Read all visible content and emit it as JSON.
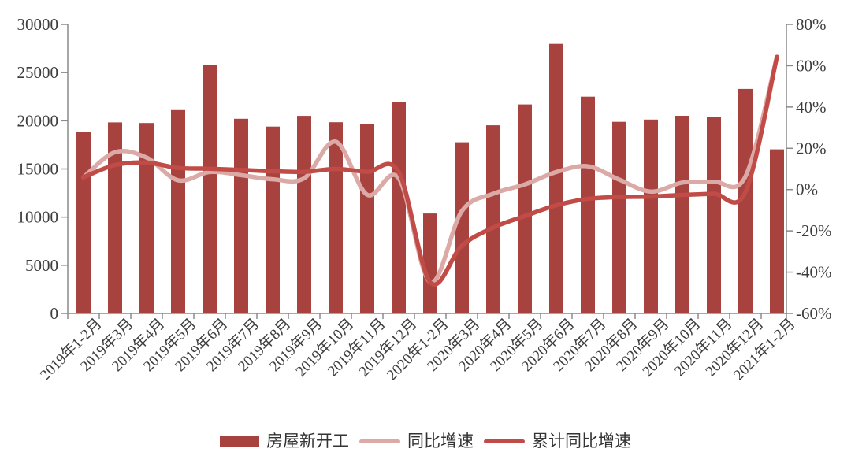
{
  "chart": {
    "background": "#ffffff",
    "text_color": "#3d3d3d",
    "axis_color": "#8a8a8a"
  },
  "chart_data": {
    "type": "bar",
    "title": "",
    "xlabel": "",
    "ylabel_left": "",
    "ylabel_right": "",
    "grid": false,
    "legend_position": "bottom",
    "categories": [
      "2019年1-2月",
      "2019年3月",
      "2019年4月",
      "2019年5月",
      "2019年6月",
      "2019年7月",
      "2019年8月",
      "2019年9月",
      "2019年10月",
      "2019年11月",
      "2019年12月",
      "2020年1-2月",
      "2020年3月",
      "2020年4月",
      "2020年5月",
      "2020年6月",
      "2020年7月",
      "2020年8月",
      "2020年9月",
      "2020年10月",
      "2020年11月",
      "2020年12月",
      "2021年1-2月"
    ],
    "series": [
      {
        "name": "房屋新开工",
        "type": "bar",
        "axis": "left",
        "color": "#a8423f",
        "values": [
          18814,
          19830,
          19767,
          21103,
          25749,
          20207,
          19399,
          20507,
          19847,
          19635,
          21916,
          10370,
          17772,
          19531,
          21697,
          27983,
          22503,
          19889,
          20123,
          20519,
          20377,
          23306,
          17037
        ]
      },
      {
        "name": "同比增速",
        "type": "line",
        "axis": "right",
        "color": "#dcaaa6",
        "values": [
          6.0,
          18.1,
          15.5,
          4.5,
          8.5,
          7.0,
          5.0,
          5.5,
          23.2,
          -2.5,
          5.5,
          -44.9,
          -10.5,
          -2.0,
          2.5,
          8.5,
          11.3,
          4.8,
          -1.0,
          3.4,
          3.8,
          6.3,
          64.3
        ]
      },
      {
        "name": "累计同比增速",
        "type": "line",
        "axis": "right",
        "color": "#c14b46",
        "values": [
          6.0,
          11.9,
          13.1,
          10.5,
          10.1,
          9.5,
          8.9,
          8.6,
          10.0,
          8.6,
          8.5,
          -44.9,
          -27.2,
          -18.4,
          -12.8,
          -7.6,
          -4.5,
          -3.6,
          -3.4,
          -2.6,
          -2.0,
          -1.2,
          64.3
        ]
      }
    ],
    "left_axis": {
      "min": 0,
      "max": 30000,
      "tick_step": 5000,
      "tick_labels": [
        "0",
        "5000",
        "10000",
        "15000",
        "20000",
        "25000",
        "30000"
      ]
    },
    "right_axis": {
      "min": -60,
      "max": 80,
      "tick_step": 20,
      "tick_labels": [
        "-60%",
        "-40%",
        "-20%",
        "0%",
        "20%",
        "40%",
        "60%",
        "80%"
      ]
    }
  }
}
